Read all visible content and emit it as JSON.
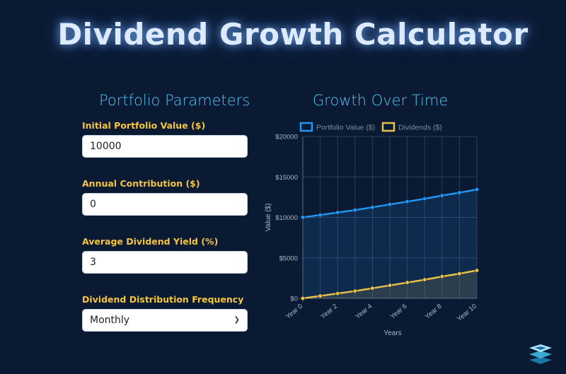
{
  "page": {
    "title": "Dividend Growth Calculator"
  },
  "params": {
    "heading": "Portfolio Parameters",
    "fields": [
      {
        "label": "Initial Portfolio Value ($)",
        "value": "10000"
      },
      {
        "label": "Annual Contribution ($)",
        "value": "0"
      },
      {
        "label": "Average Dividend Yield (%)",
        "value": "3"
      },
      {
        "label": "Dividend Distribution Frequency",
        "value": "Monthly"
      }
    ]
  },
  "chart": {
    "heading": "Growth Over Time"
  },
  "chart_data": {
    "type": "line",
    "x": [
      "Year 0",
      "Year 1",
      "Year 2",
      "Year 3",
      "Year 4",
      "Year 5",
      "Year 6",
      "Year 7",
      "Year 8",
      "Year 9",
      "Year 10"
    ],
    "x_tick_labels": [
      "Year 0",
      "Year 2",
      "Year 4",
      "Year 6",
      "Year 8",
      "Year 10"
    ],
    "xlabel": "Years",
    "ylabel": "Value ($)",
    "ylim": [
      0,
      20000
    ],
    "y_tick_labels": [
      "$0",
      "$5000",
      "$10000",
      "$15000",
      "$20000"
    ],
    "y_ticks": [
      0,
      5000,
      10000,
      15000,
      20000
    ],
    "grid": true,
    "legend": "top",
    "fill": true,
    "series": [
      {
        "name": "Portfolio Value ($)",
        "color": "#2196f3",
        "values": [
          10000,
          10300,
          10600,
          10900,
          11250,
          11600,
          11950,
          12300,
          12700,
          13050,
          13450
        ]
      },
      {
        "name": "Dividends ($)",
        "color": "#e8c14a",
        "values": [
          0,
          300,
          600,
          900,
          1250,
          1600,
          1950,
          2300,
          2700,
          3050,
          3450
        ]
      }
    ]
  }
}
